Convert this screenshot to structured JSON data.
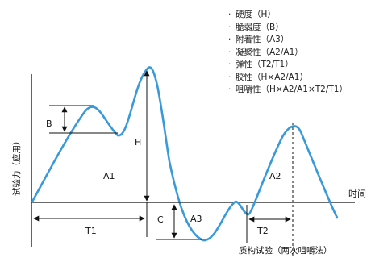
{
  "legend": [
    "硬度（H）",
    "脆弱度（B）",
    "附着性（A3）",
    "凝聚性（A2/A1）",
    "弹性（T2/T1）",
    "胶性（H×A2/A1）",
    "咀嚼性（H×A2/A1×T2/T1）"
  ],
  "labels": {
    "y_axis": "试验力（应用）",
    "x_axis": "时间",
    "caption": "质构试验（两次咀嚼法）",
    "B": "B",
    "H": "H",
    "C": "C",
    "A1": "A1",
    "A2": "A2",
    "A3": "A3",
    "T1": "T1",
    "T2": "T2"
  },
  "colors": {
    "curve": "#3a9ad9",
    "axis": "#111111"
  }
}
